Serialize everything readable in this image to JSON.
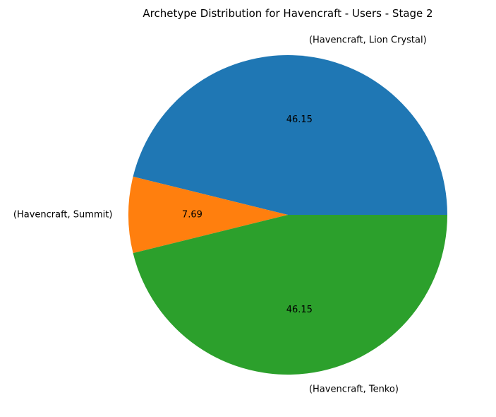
{
  "chart_data": {
    "type": "pie",
    "title": "Archetype Distribution for Havencraft - Users - Stage 2",
    "categories": [
      "(Havencraft, Lion Crystal)",
      "(Havencraft, Summit)",
      "(Havencraft, Tenko)"
    ],
    "values": [
      46.15,
      7.69,
      46.15
    ],
    "value_labels": [
      "46.15",
      "7.69",
      "46.15"
    ],
    "colors": [
      "#1f77b4",
      "#ff7f0e",
      "#2ca02c"
    ],
    "start_angle": 0,
    "direction": "counterclockwise",
    "legend": "none"
  }
}
